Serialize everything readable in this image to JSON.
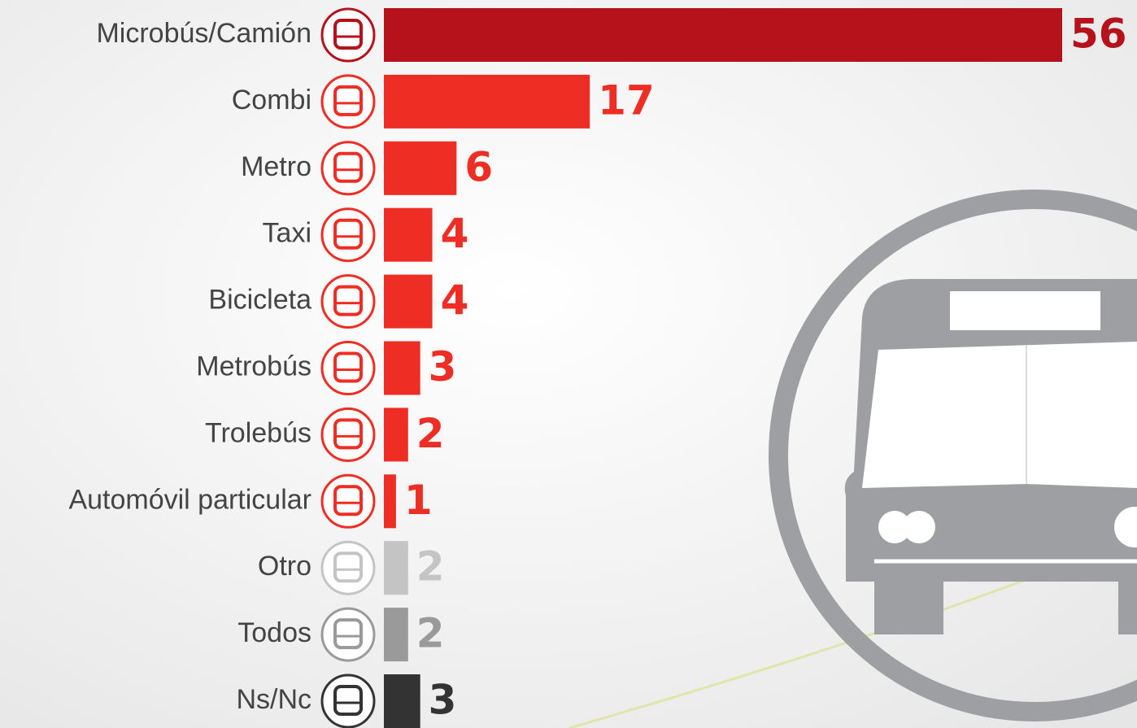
{
  "chart_data": {
    "type": "bar",
    "orientation": "horizontal",
    "categories": [
      "Microbús/Camión",
      "Combi",
      "Metro",
      "Taxi",
      "Bicicleta",
      "Metrobús",
      "Trolebús",
      "Automóvil particular",
      "Otro",
      "Todos",
      "Ns/Nc"
    ],
    "values": [
      56,
      17,
      6,
      4,
      4,
      3,
      2,
      1,
      2,
      2,
      3
    ],
    "colors": [
      "#b5121b",
      "#ee2e24",
      "#ee2e24",
      "#ee2e24",
      "#ee2e24",
      "#ee2e24",
      "#ee2e24",
      "#ee2e24",
      "#c4c4c4",
      "#9a9a9a",
      "#333333"
    ]
  }
}
